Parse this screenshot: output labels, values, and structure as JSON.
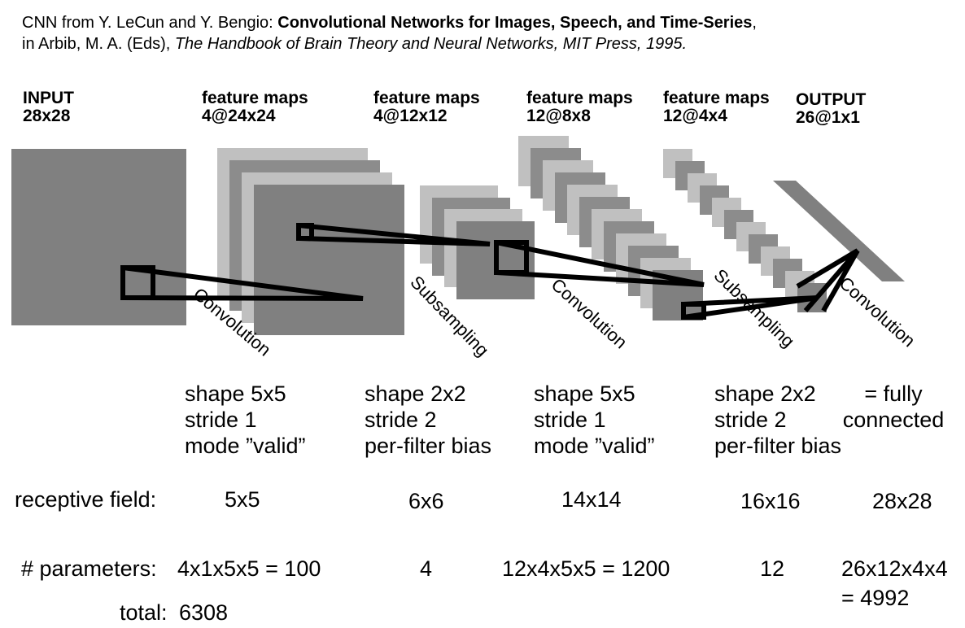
{
  "citation": {
    "prefix": "CNN from Y. LeCun and Y. Bengio: ",
    "title": "Convolutional Networks for Images, Speech, and Time-Series",
    "comma": ",",
    "line2_prefix": "in Arbib, M. A. (Eds), ",
    "book": "The Handbook of Brain Theory and Neural Networks, MIT Press, 1995."
  },
  "layers": [
    {
      "title": "INPUT",
      "size": "28x28"
    },
    {
      "title": "feature maps",
      "size": "4@24x24"
    },
    {
      "title": "feature maps",
      "size": "4@12x12"
    },
    {
      "title": "feature maps",
      "size": "12@8x8"
    },
    {
      "title": "feature maps",
      "size": "12@4x4"
    },
    {
      "title": "OUTPUT",
      "size": "26@1x1"
    }
  ],
  "operations": [
    "Convolution",
    "Subsampling",
    "Convolution",
    "Subsampling",
    "Convolution"
  ],
  "op_params": [
    [
      "shape 5x5",
      "stride 1",
      "mode ”valid”"
    ],
    [
      "shape 2x2",
      "stride 2",
      "per-filter bias"
    ],
    [
      "shape 5x5",
      "stride 1",
      "mode ”valid”"
    ],
    [
      "shape 2x2",
      "stride 2",
      "per-filter bias"
    ],
    [
      "= fully",
      "connected"
    ]
  ],
  "receptive_field": {
    "label": "receptive field:",
    "values": [
      "5x5",
      "6x6",
      "14x14",
      "16x16",
      "28x28"
    ]
  },
  "parameters": {
    "label": "# parameters:",
    "values": [
      "4x1x5x5 = 100",
      "4",
      "12x4x5x5 = 1200",
      "12",
      "26x12x4x4",
      "= 4992"
    ],
    "total_label": "total:",
    "total_value": "6308"
  },
  "colors": {
    "map_dark": "#808080",
    "map_mid": "#8c8c8c",
    "map_light": "#c0c0c0",
    "line": "#000000"
  }
}
